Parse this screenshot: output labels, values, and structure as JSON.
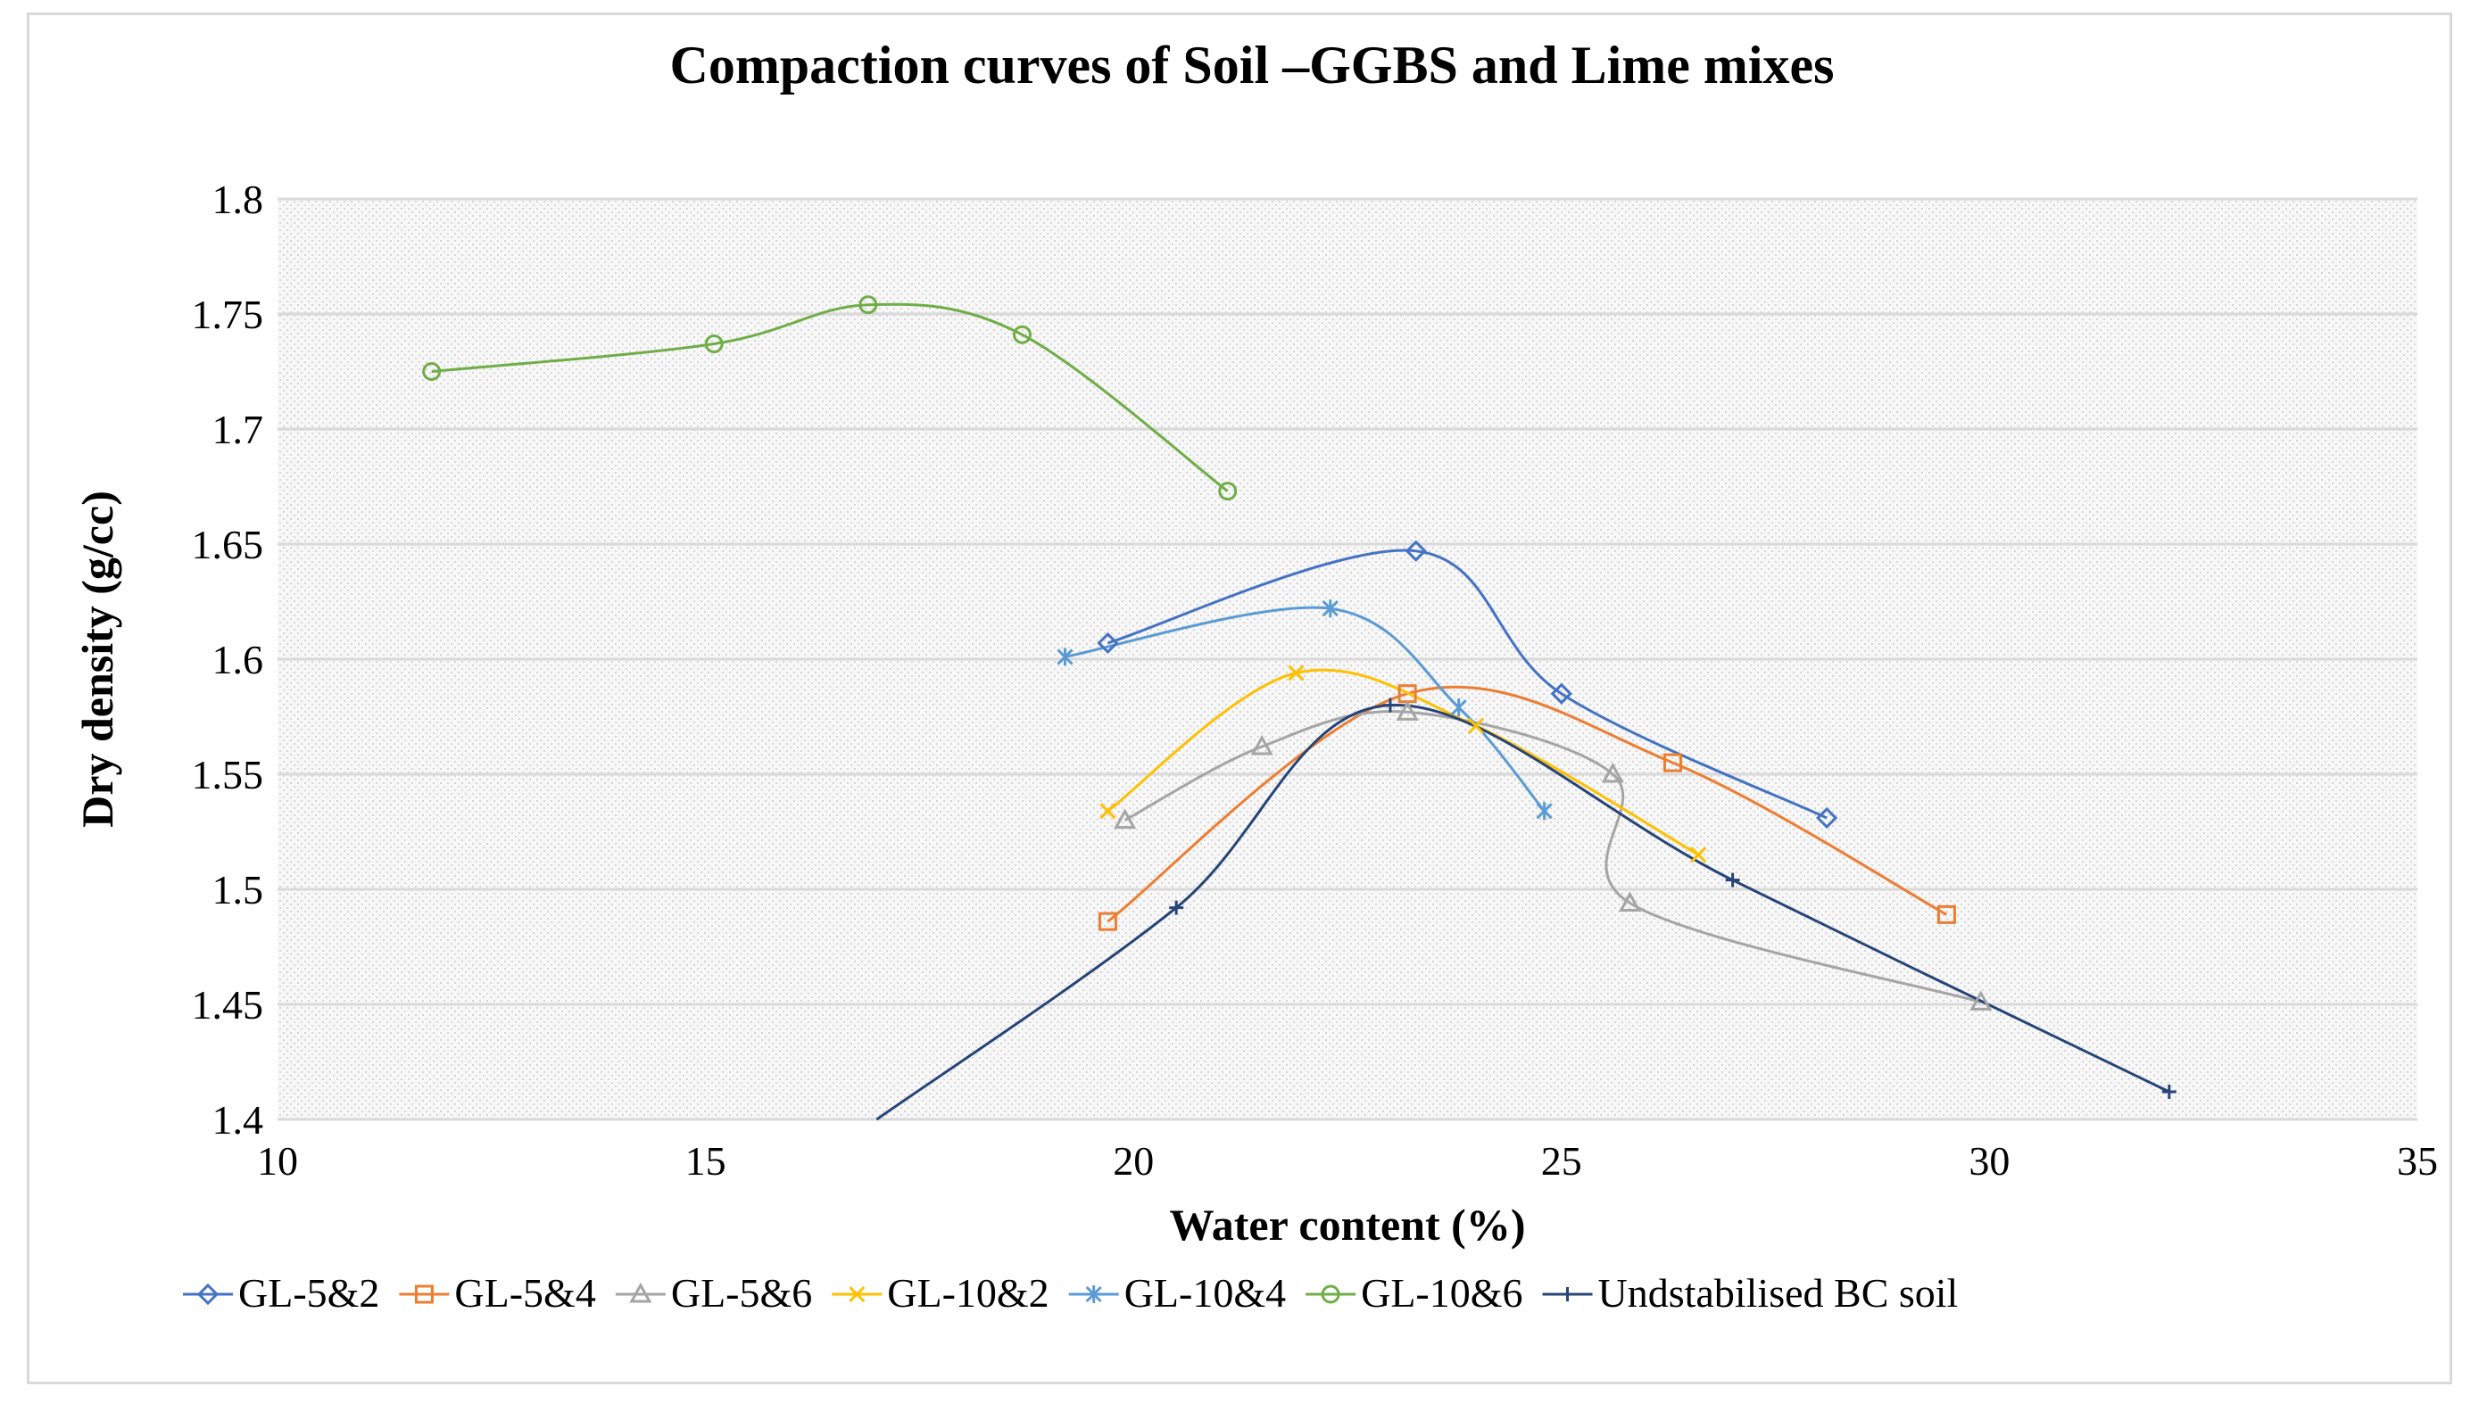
{
  "chart_data": {
    "type": "scatter",
    "title": "Compaction curves of Soil –GGBS and Lime mixes",
    "xlabel": "Water content (%)",
    "ylabel": "Dry density (g/cc)",
    "xlim": [
      10,
      35
    ],
    "ylim": [
      1.4,
      1.8
    ],
    "x_ticks": [
      10,
      15,
      20,
      25,
      30,
      35
    ],
    "y_ticks": [
      1.4,
      1.45,
      1.5,
      1.55,
      1.6,
      1.65,
      1.7,
      1.75,
      1.8
    ],
    "x_tick_labels": [
      "10",
      "15",
      "20",
      "25",
      "30",
      "35"
    ],
    "y_tick_labels": [
      "1.4",
      "1.45",
      "1.5",
      "1.55",
      "1.6",
      "1.65",
      "1.7",
      "1.75",
      "1.8"
    ],
    "grid": true,
    "legend_position": "bottom",
    "series": [
      {
        "name": "GL-5&2",
        "color": "#4472c4",
        "marker": "diamond",
        "x": [
          19.7,
          23.3,
          25.0,
          28.1
        ],
        "y": [
          1.607,
          1.647,
          1.585,
          1.531
        ]
      },
      {
        "name": "GL-5&4",
        "color": "#ed7d31",
        "marker": "square",
        "x": [
          19.7,
          23.2,
          26.3,
          29.5
        ],
        "y": [
          1.486,
          1.585,
          1.555,
          1.489
        ]
      },
      {
        "name": "GL-5&6",
        "color": "#a5a5a5",
        "marker": "triangle",
        "x": [
          19.9,
          21.5,
          23.2,
          25.6,
          25.8,
          29.9
        ],
        "y": [
          1.53,
          1.562,
          1.577,
          1.55,
          1.494,
          1.451
        ]
      },
      {
        "name": "GL-10&2",
        "color": "#ffc000",
        "marker": "x",
        "x": [
          19.7,
          21.9,
          24.0,
          26.6
        ],
        "y": [
          1.534,
          1.594,
          1.571,
          1.515
        ]
      },
      {
        "name": "GL-10&4",
        "color": "#5b9bd5",
        "marker": "asterisk",
        "x": [
          19.2,
          22.3,
          23.8,
          24.8
        ],
        "y": [
          1.601,
          1.622,
          1.579,
          1.534
        ]
      },
      {
        "name": "GL-10&6",
        "color": "#70ad47",
        "marker": "circle",
        "x": [
          11.8,
          15.1,
          16.9,
          18.7,
          21.1
        ],
        "y": [
          1.725,
          1.737,
          1.754,
          1.741,
          1.673
        ]
      },
      {
        "name": "Undstabilised BC soil",
        "color": "#264478",
        "marker": "plus",
        "x": [
          17.0,
          20.5,
          23.0,
          27.0,
          32.1
        ],
        "y": [
          1.4,
          1.492,
          1.58,
          1.504,
          1.412
        ]
      }
    ]
  }
}
